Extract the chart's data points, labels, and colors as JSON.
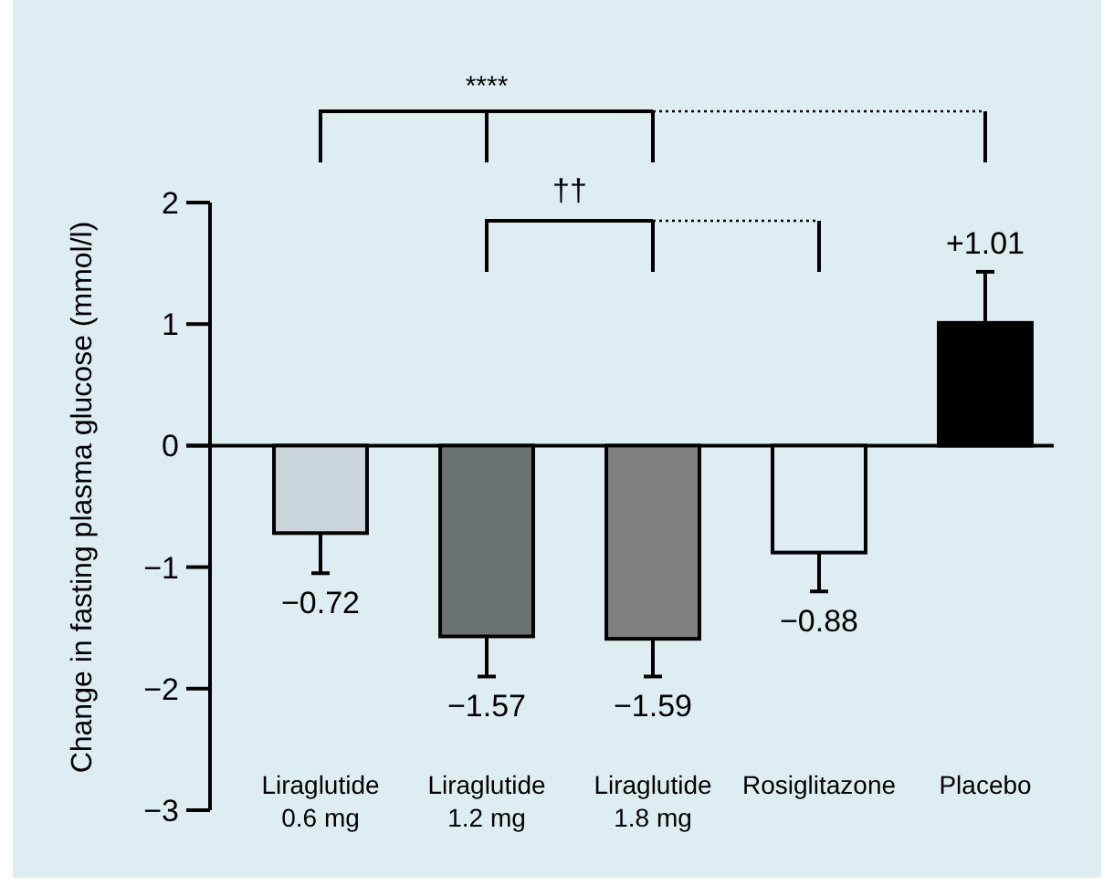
{
  "chart_data": {
    "type": "bar",
    "ylabel": "Change in fasting plasma glucose (mmol/l)",
    "categories": [
      "Liraglutide\n0.6 mg",
      "Liraglutide\n1.2 mg",
      "Liraglutide\n1.8 mg",
      "Rosiglitazone",
      "Placebo"
    ],
    "values": [
      -0.72,
      -1.57,
      -1.59,
      -0.88,
      1.01
    ],
    "errors": [
      0.33,
      0.33,
      0.31,
      0.32,
      0.42
    ],
    "colors": [
      "#c9d5d9",
      "#6b7275",
      "#808080",
      "#deedf1",
      "#000000"
    ],
    "value_labels": [
      "−0.72",
      "−1.57",
      "−1.59",
      "−0.88",
      "+1.01"
    ],
    "ylim": [
      -3,
      2
    ],
    "yticks": [
      {
        "value": -3,
        "label": "−3"
      },
      {
        "value": -2,
        "label": "−2"
      },
      {
        "value": -1,
        "label": "−1"
      },
      0,
      1,
      2
    ],
    "annotations": [
      "****",
      "††"
    ]
  }
}
